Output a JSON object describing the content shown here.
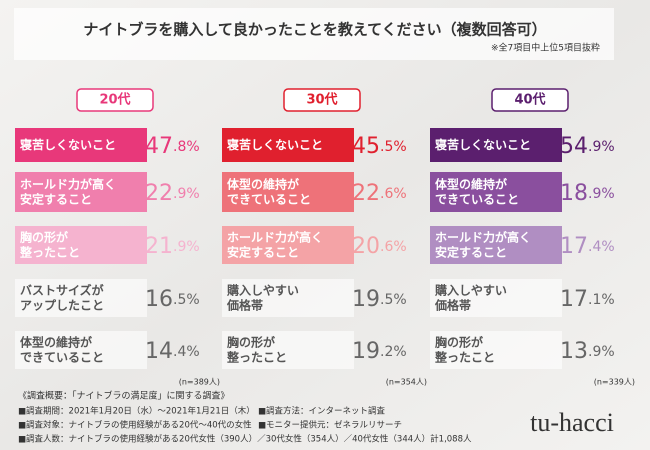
{
  "title": "ナイトブラを購入して良かったことを教えてください（複数回答可）",
  "note": "※全7項目中上位5項目抜粋",
  "chart_data": [
    {
      "type": "bar",
      "title": "20代",
      "categories": [
        "寝苦しくないこと",
        "ホールド力が高く\n安定すること",
        "胸の形が\n整ったこと",
        "バストサイズが\nアップしたこと",
        "体型の維持が\nできていること"
      ],
      "values": [
        47.8,
        22.9,
        21.9,
        16.5,
        14.4
      ],
      "value_labels": [
        "47.8%",
        "22.9%",
        "21.9%",
        "16.5%",
        "14.4%"
      ],
      "color": "#e8387a",
      "colors": [
        "#e8387a",
        "#f07fad",
        "#f5b3cf",
        "#8a8a8a",
        "#8a8a8a"
      ],
      "sample": "(n=389人)"
    },
    {
      "type": "bar",
      "title": "30代",
      "categories": [
        "寝苦しくないこと",
        "体型の維持が\nできていること",
        "ホールド力が高く\n安定すること",
        "購入しやすい\n価格帯",
        "胸の形が\n整ったこと"
      ],
      "values": [
        45.5,
        22.6,
        20.6,
        19.5,
        19.2
      ],
      "value_labels": [
        "45.5%",
        "22.6%",
        "20.6%",
        "19.5%",
        "19.2%"
      ],
      "color": "#e0202e",
      "colors": [
        "#e0202e",
        "#ee7279",
        "#f4a3a6",
        "#8a8a8a",
        "#8a8a8a"
      ],
      "sample": "(n=354人)"
    },
    {
      "type": "bar",
      "title": "40代",
      "categories": [
        "寝苦しくないこと",
        "体型の維持が\nできていること",
        "ホールド力が高く\n安定すること",
        "購入しやすい\n価格帯",
        "胸の形が\n整ったこと"
      ],
      "values": [
        54.9,
        18.9,
        17.4,
        17.1,
        13.9
      ],
      "value_labels": [
        "54.9%",
        "18.9%",
        "17.4%",
        "17.1%",
        "13.9%"
      ],
      "color": "#5b1f6e",
      "colors": [
        "#5b1f6e",
        "#8a4f9e",
        "#b08ec2",
        "#8a8a8a",
        "#8a8a8a"
      ],
      "sample": "(n=339人)"
    }
  ],
  "survey": {
    "heading": "《調査概要：「ナイトブラの満足度」に関する調査》",
    "left": [
      "■調査期間：2021年1月20日（水）～2021年1月21日（木）",
      "■調査対象：ナイトブラの使用経験がある20代～40代の女性",
      "■調査人数：ナイトブラの使用経験がある20代女性（390人）／30代女性（354人）／40代女性（344人）計1,088人"
    ],
    "right": [
      "■調査方法：インターネット調査",
      "■モニター提供元：ゼネラルリサーチ"
    ]
  },
  "logo": "tu-hacci"
}
